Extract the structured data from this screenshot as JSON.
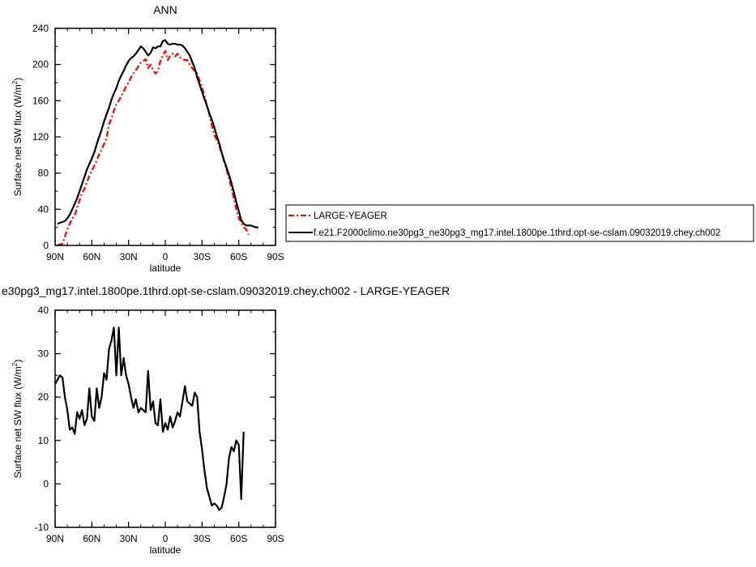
{
  "chart_data": [
    {
      "type": "line",
      "title": "ANN",
      "xlabel": "latitude",
      "ylabel": "Surface net SW flux (W/m2)",
      "ylabel_main": "Surface net SW flux (W/m",
      "ylabel_sup": "2",
      "ylabel_tail": ")",
      "xlim": [
        90,
        -90
      ],
      "ylim": [
        0,
        240
      ],
      "x_ticks": [
        90,
        60,
        30,
        0,
        -30,
        -60,
        -90
      ],
      "x_tick_labels": [
        "90N",
        "60N",
        "30N",
        "0",
        "30S",
        "60S",
        "90S"
      ],
      "y_ticks": [
        0,
        40,
        80,
        120,
        160,
        200,
        240
      ],
      "y_tick_labels": [
        "0",
        "40",
        "80",
        "120",
        "160",
        "200",
        "240"
      ],
      "legend": "right",
      "series": [
        {
          "name": "LARGE-YEAGER",
          "color": "#ff0000",
          "dash": "dashed",
          "points": [
            [
              88,
              1
            ],
            [
              86,
              1
            ],
            [
              84,
              2
            ],
            [
              82,
              10
            ],
            [
              80,
              18
            ],
            [
              78,
              24
            ],
            [
              76,
              30
            ],
            [
              74,
              33
            ],
            [
              72,
              42
            ],
            [
              70,
              50
            ],
            [
              68,
              58
            ],
            [
              66,
              63
            ],
            [
              64,
              70
            ],
            [
              62,
              77
            ],
            [
              60,
              83
            ],
            [
              58,
              88
            ],
            [
              56,
              94
            ],
            [
              54,
              101
            ],
            [
              52,
              106
            ],
            [
              50,
              112
            ],
            [
              48,
              118
            ],
            [
              46,
              134
            ],
            [
              44,
              140
            ],
            [
              42,
              149
            ],
            [
              40,
              156
            ],
            [
              38,
              160
            ],
            [
              36,
              165
            ],
            [
              34,
              170
            ],
            [
              32,
              176
            ],
            [
              30,
              180
            ],
            [
              28,
              186
            ],
            [
              26,
              190
            ],
            [
              24,
              194
            ],
            [
              22,
              198
            ],
            [
              20,
              202
            ],
            [
              18,
              204
            ],
            [
              16,
              206
            ],
            [
              14,
              196
            ],
            [
              12,
              200
            ],
            [
              10,
              194
            ],
            [
              8,
              190
            ],
            [
              6,
              193
            ],
            [
              4,
              204
            ],
            [
              2,
              210
            ],
            [
              0,
              215
            ],
            [
              -2,
              205
            ],
            [
              -4,
              210
            ],
            [
              -6,
              212
            ],
            [
              -8,
              209
            ],
            [
              -10,
              212
            ],
            [
              -12,
              208
            ],
            [
              -14,
              206
            ],
            [
              -16,
              205
            ],
            [
              -18,
              205
            ],
            [
              -20,
              200
            ],
            [
              -22,
              196
            ],
            [
              -24,
              193
            ],
            [
              -26,
              190
            ],
            [
              -28,
              182
            ],
            [
              -30,
              175
            ],
            [
              -32,
              165
            ],
            [
              -34,
              155
            ],
            [
              -36,
              145
            ],
            [
              -38,
              133
            ],
            [
              -40,
              122
            ],
            [
              -42,
              117
            ],
            [
              -44,
              110
            ],
            [
              -46,
              102
            ],
            [
              -48,
              93
            ],
            [
              -50,
              84
            ],
            [
              -52,
              74
            ],
            [
              -54,
              64
            ],
            [
              -56,
              52
            ],
            [
              -58,
              40
            ],
            [
              -60,
              30
            ],
            [
              -62,
              26
            ],
            [
              -64,
              20
            ],
            [
              -66,
              18
            ],
            [
              -68,
              12
            ]
          ]
        },
        {
          "name": "f.e21.F2000climo.ne30pg3_ne30pg3_mg17.intel.1800pe.1thrd.opt-se-cslam.09032019.chey.ch002",
          "color": "#000000",
          "dash": "solid",
          "points": [
            [
              88,
              24
            ],
            [
              86,
              25
            ],
            [
              84,
              26
            ],
            [
              82,
              27
            ],
            [
              80,
              30
            ],
            [
              78,
              34
            ],
            [
              76,
              40
            ],
            [
              74,
              46
            ],
            [
              72,
              52
            ],
            [
              70,
              60
            ],
            [
              68,
              68
            ],
            [
              66,
              76
            ],
            [
              64,
              84
            ],
            [
              62,
              90
            ],
            [
              60,
              96
            ],
            [
              58,
              103
            ],
            [
              56,
              112
            ],
            [
              54,
              120
            ],
            [
              52,
              128
            ],
            [
              50,
              137
            ],
            [
              48,
              145
            ],
            [
              46,
              152
            ],
            [
              44,
              161
            ],
            [
              42,
              168
            ],
            [
              40,
              174
            ],
            [
              38,
              182
            ],
            [
              36,
              188
            ],
            [
              34,
              193
            ],
            [
              32,
              199
            ],
            [
              30,
              204
            ],
            [
              28,
              207
            ],
            [
              26,
              209
            ],
            [
              24,
              212
            ],
            [
              22,
              216
            ],
            [
              20,
              220
            ],
            [
              18,
              218
            ],
            [
              16,
              214
            ],
            [
              14,
              210
            ],
            [
              12,
              213
            ],
            [
              10,
              219
            ],
            [
              8,
              218
            ],
            [
              6,
              220
            ],
            [
              4,
              220
            ],
            [
              2,
              226
            ],
            [
              0,
              227
            ],
            [
              -2,
              223
            ],
            [
              -4,
              222
            ],
            [
              -6,
              223
            ],
            [
              -8,
              223
            ],
            [
              -10,
              222
            ],
            [
              -12,
              222
            ],
            [
              -14,
              221
            ],
            [
              -16,
              218
            ],
            [
              -18,
              214
            ],
            [
              -20,
              210
            ],
            [
              -22,
              203
            ],
            [
              -24,
              196
            ],
            [
              -26,
              186
            ],
            [
              -28,
              178
            ],
            [
              -30,
              170
            ],
            [
              -32,
              162
            ],
            [
              -34,
              154
            ],
            [
              -36,
              146
            ],
            [
              -38,
              139
            ],
            [
              -40,
              131
            ],
            [
              -42,
              121
            ],
            [
              -44,
              113
            ],
            [
              -46,
              103
            ],
            [
              -48,
              94
            ],
            [
              -50,
              86
            ],
            [
              -52,
              78
            ],
            [
              -54,
              69
            ],
            [
              -56,
              59
            ],
            [
              -58,
              48
            ],
            [
              -60,
              38
            ],
            [
              -62,
              28
            ],
            [
              -64,
              24
            ],
            [
              -66,
              22
            ],
            [
              -68,
              22
            ],
            [
              -70,
              22
            ],
            [
              -72,
              21
            ],
            [
              -74,
              20
            ],
            [
              -76,
              20
            ]
          ]
        }
      ]
    },
    {
      "type": "line",
      "title": "e30pg3_mg17.intel.1800pe.1thrd.opt-se-cslam.09032019.chey.ch002 - LARGE-YEAGER",
      "xlabel": "latitude",
      "ylabel": "Surface net SW flux (W/m2)",
      "ylabel_main": "Surface net SW flux (W/m",
      "ylabel_sup": "2",
      "ylabel_tail": ")",
      "xlim": [
        90,
        -90
      ],
      "ylim": [
        -10,
        40
      ],
      "x_ticks": [
        90,
        60,
        30,
        0,
        -30,
        -60,
        -90
      ],
      "x_tick_labels": [
        "90N",
        "60N",
        "30N",
        "0",
        "30S",
        "60S",
        "90S"
      ],
      "y_ticks": [
        -10,
        0,
        10,
        20,
        30,
        40
      ],
      "y_tick_labels": [
        "-10",
        "0",
        "10",
        "20",
        "30",
        "40"
      ],
      "series": [
        {
          "color": "#000000",
          "dash": "solid",
          "points": [
            [
              90,
              23
            ],
            [
              88,
              24
            ],
            [
              86,
              25
            ],
            [
              84,
              24.5
            ],
            [
              82,
              20
            ],
            [
              80,
              17
            ],
            [
              78,
              12.5
            ],
            [
              76,
              13
            ],
            [
              74,
              11.5
            ],
            [
              72,
              16.5
            ],
            [
              70,
              15
            ],
            [
              68,
              17
            ],
            [
              66,
              13.5
            ],
            [
              64,
              15
            ],
            [
              62,
              22
            ],
            [
              60,
              15.5
            ],
            [
              58,
              14.5
            ],
            [
              56,
              22
            ],
            [
              54,
              17.5
            ],
            [
              52,
              20
            ],
            [
              50,
              25.5
            ],
            [
              48,
              24
            ],
            [
              46,
              31
            ],
            [
              44,
              33
            ],
            [
              42,
              36
            ],
            [
              40,
              25
            ],
            [
              38,
              36
            ],
            [
              36,
              25
            ],
            [
              34,
              29
            ],
            [
              32,
              25
            ],
            [
              30,
              23
            ],
            [
              28,
              20
            ],
            [
              26,
              17.5
            ],
            [
              24,
              19.5
            ],
            [
              22,
              16.5
            ],
            [
              20,
              17.5
            ],
            [
              18,
              17
            ],
            [
              16,
              16.5
            ],
            [
              14,
              26
            ],
            [
              12,
              17
            ],
            [
              10,
              19
            ],
            [
              8,
              14
            ],
            [
              6,
              13.5
            ],
            [
              4,
              19.5
            ],
            [
              2,
              12
            ],
            [
              0,
              14
            ],
            [
              -2,
              12.5
            ],
            [
              -4,
              15.5
            ],
            [
              -6,
              13
            ],
            [
              -8,
              14.5
            ],
            [
              -10,
              16.5
            ],
            [
              -12,
              15.5
            ],
            [
              -14,
              19
            ],
            [
              -16,
              22.5
            ],
            [
              -18,
              19
            ],
            [
              -20,
              18.5
            ],
            [
              -22,
              18
            ],
            [
              -24,
              21
            ],
            [
              -26,
              20
            ],
            [
              -28,
              12
            ],
            [
              -30,
              8
            ],
            [
              -32,
              3
            ],
            [
              -34,
              -1
            ],
            [
              -36,
              -3
            ],
            [
              -38,
              -5
            ],
            [
              -40,
              -4.5
            ],
            [
              -42,
              -5
            ],
            [
              -44,
              -6
            ],
            [
              -46,
              -5.5
            ],
            [
              -48,
              -3
            ],
            [
              -50,
              0
            ],
            [
              -52,
              6
            ],
            [
              -54,
              8.5
            ],
            [
              -56,
              7.5
            ],
            [
              -58,
              10
            ],
            [
              -60,
              9
            ],
            [
              -62,
              -3.5
            ],
            [
              -64,
              12
            ]
          ]
        }
      ]
    }
  ]
}
